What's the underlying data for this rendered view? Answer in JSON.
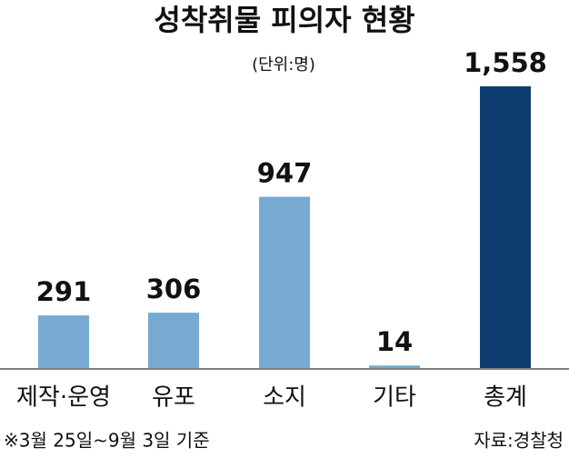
{
  "chart_data": {
    "type": "bar",
    "title": "성착취물 피의자 현황",
    "unit": "(단위:명)",
    "categories": [
      "제작·운영",
      "유포",
      "소지",
      "기타",
      "총계"
    ],
    "values": [
      291,
      306,
      947,
      14,
      1558
    ],
    "value_labels": [
      "291",
      "306",
      "947",
      "14",
      "1,558"
    ],
    "colors": [
      "#76aad0",
      "#76aad0",
      "#76aad0",
      "#76aad0",
      "#0c3d6e"
    ],
    "note": "※3월 25일~9월 3일 기준",
    "source": "자료:경찰청"
  }
}
